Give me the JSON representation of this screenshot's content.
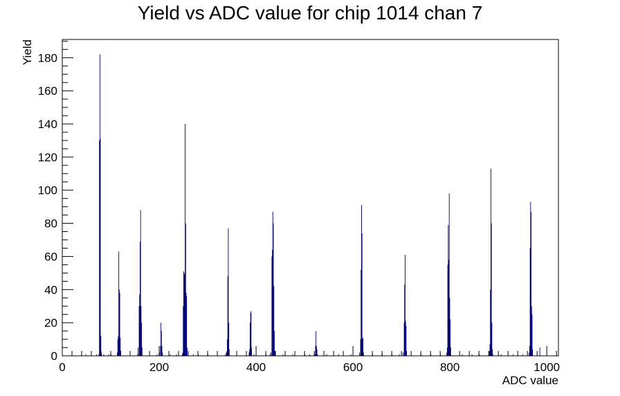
{
  "chart_data": {
    "type": "histogram",
    "title": "Yield vs ADC value for chip 1014 chan 7",
    "xlabel": "ADC value",
    "ylabel": "Yield",
    "xlim": [
      0,
      1024
    ],
    "ylim": [
      0,
      191
    ],
    "x_ticks": [
      0,
      200,
      400,
      600,
      800,
      1000
    ],
    "y_ticks": [
      0,
      20,
      40,
      60,
      80,
      100,
      120,
      140,
      160,
      180
    ],
    "x_tick_labels": [
      "0",
      "200",
      "400",
      "600",
      "800",
      "1000"
    ],
    "y_tick_labels": [
      "0",
      "20",
      "40",
      "60",
      "80",
      "100",
      "120",
      "140",
      "160",
      "180"
    ],
    "grid": false,
    "legend": "none",
    "color": "#00007f",
    "bins": [
      [
        48,
        1
      ],
      [
        70,
        1
      ],
      [
        75,
        1
      ],
      [
        76,
        130
      ],
      [
        77,
        182
      ],
      [
        78,
        131
      ],
      [
        79,
        12
      ],
      [
        80,
        2
      ],
      [
        85,
        1
      ],
      [
        95,
        1
      ],
      [
        100,
        1
      ],
      [
        113,
        2
      ],
      [
        114,
        10
      ],
      [
        115,
        12
      ],
      [
        116,
        63
      ],
      [
        117,
        40
      ],
      [
        118,
        38
      ],
      [
        119,
        11
      ],
      [
        120,
        3
      ],
      [
        155,
        1
      ],
      [
        156,
        5
      ],
      [
        158,
        30
      ],
      [
        159,
        37
      ],
      [
        160,
        69
      ],
      [
        161,
        88
      ],
      [
        162,
        30
      ],
      [
        163,
        20
      ],
      [
        164,
        5
      ],
      [
        195,
        1
      ],
      [
        200,
        2
      ],
      [
        202,
        6
      ],
      [
        203,
        20
      ],
      [
        204,
        15
      ],
      [
        205,
        6
      ],
      [
        206,
        2
      ],
      [
        222,
        1
      ],
      [
        235,
        1
      ],
      [
        247,
        1
      ],
      [
        248,
        2
      ],
      [
        249,
        30
      ],
      [
        250,
        51
      ],
      [
        251,
        50
      ],
      [
        252,
        49
      ],
      [
        253,
        140
      ],
      [
        254,
        80
      ],
      [
        255,
        38
      ],
      [
        256,
        36
      ],
      [
        257,
        5
      ],
      [
        270,
        1
      ],
      [
        280,
        1
      ],
      [
        300,
        1
      ],
      [
        336,
        1
      ],
      [
        338,
        2
      ],
      [
        340,
        10
      ],
      [
        341,
        48
      ],
      [
        342,
        77
      ],
      [
        343,
        20
      ],
      [
        344,
        4
      ],
      [
        385,
        2
      ],
      [
        386,
        4
      ],
      [
        387,
        20
      ],
      [
        388,
        26
      ],
      [
        389,
        27
      ],
      [
        390,
        5
      ],
      [
        395,
        1
      ],
      [
        420,
        1
      ],
      [
        428,
        1
      ],
      [
        430,
        2
      ],
      [
        432,
        60
      ],
      [
        433,
        64
      ],
      [
        434,
        87
      ],
      [
        435,
        80
      ],
      [
        436,
        42
      ],
      [
        437,
        15
      ],
      [
        438,
        3
      ],
      [
        455,
        1
      ],
      [
        475,
        1
      ],
      [
        500,
        1
      ],
      [
        510,
        1
      ],
      [
        521,
        1
      ],
      [
        522,
        6
      ],
      [
        523,
        15
      ],
      [
        524,
        6
      ],
      [
        525,
        4
      ],
      [
        526,
        1
      ],
      [
        545,
        1
      ],
      [
        570,
        1
      ],
      [
        595,
        1
      ],
      [
        613,
        2
      ],
      [
        615,
        10
      ],
      [
        616,
        52
      ],
      [
        617,
        91
      ],
      [
        618,
        74
      ],
      [
        619,
        10
      ],
      [
        620,
        11
      ],
      [
        621,
        2
      ],
      [
        640,
        1
      ],
      [
        660,
        1
      ],
      [
        680,
        1
      ],
      [
        695,
        1
      ],
      [
        703,
        2
      ],
      [
        705,
        20
      ],
      [
        706,
        43
      ],
      [
        707,
        61
      ],
      [
        708,
        21
      ],
      [
        709,
        18
      ],
      [
        710,
        3
      ],
      [
        740,
        1
      ],
      [
        760,
        1
      ],
      [
        780,
        1
      ],
      [
        793,
        2
      ],
      [
        794,
        5
      ],
      [
        795,
        55
      ],
      [
        796,
        79
      ],
      [
        797,
        58
      ],
      [
        798,
        98
      ],
      [
        799,
        35
      ],
      [
        800,
        22
      ],
      [
        801,
        5
      ],
      [
        825,
        1
      ],
      [
        845,
        1
      ],
      [
        860,
        1
      ],
      [
        881,
        3
      ],
      [
        882,
        7
      ],
      [
        883,
        40
      ],
      [
        884,
        113
      ],
      [
        885,
        80
      ],
      [
        886,
        20
      ],
      [
        887,
        4
      ],
      [
        888,
        1
      ],
      [
        905,
        1
      ],
      [
        930,
        1
      ],
      [
        950,
        1
      ],
      [
        963,
        2
      ],
      [
        964,
        6
      ],
      [
        965,
        65
      ],
      [
        966,
        93
      ],
      [
        967,
        87
      ],
      [
        968,
        30
      ],
      [
        969,
        25
      ],
      [
        970,
        4
      ],
      [
        985,
        5
      ]
    ]
  }
}
